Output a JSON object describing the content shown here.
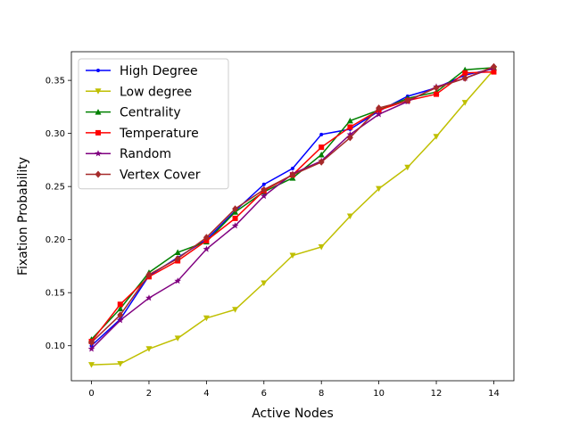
{
  "chart_data": {
    "type": "line",
    "title": "",
    "xlabel": "Active Nodes",
    "ylabel": "Fixation Probability",
    "xlim": [
      -0.7,
      14.7
    ],
    "ylim": [
      0.067,
      0.377
    ],
    "xticks": [
      0,
      2,
      4,
      6,
      8,
      10,
      12,
      14
    ],
    "yticks": [
      0.1,
      0.15,
      0.2,
      0.25,
      0.3,
      0.35
    ],
    "xtick_labels": [
      "0",
      "2",
      "4",
      "6",
      "8",
      "10",
      "12",
      "14"
    ],
    "ytick_labels": [
      "0.10",
      "0.15",
      "0.20",
      "0.25",
      "0.30",
      "0.35"
    ],
    "grid": false,
    "legend_position": "upper-left",
    "x": [
      0,
      1,
      2,
      3,
      4,
      5,
      6,
      7,
      8,
      9,
      10,
      11,
      12,
      13,
      14
    ],
    "series": [
      {
        "name": "High Degree",
        "color": "#0000ff",
        "marker": "point",
        "values": [
          0.1,
          0.125,
          0.166,
          0.183,
          0.2,
          0.227,
          0.252,
          0.267,
          0.299,
          0.304,
          0.321,
          0.335,
          0.343,
          0.355,
          0.361
        ]
      },
      {
        "name": "Low degree",
        "color": "#bfbf00",
        "marker": "triangle-down",
        "values": [
          0.082,
          0.083,
          0.097,
          0.107,
          0.126,
          0.134,
          0.159,
          0.185,
          0.193,
          0.222,
          0.248,
          0.268,
          0.297,
          0.329,
          0.36
        ]
      },
      {
        "name": "Centrality",
        "color": "#008000",
        "marker": "triangle-up",
        "values": [
          0.106,
          0.135,
          0.169,
          0.188,
          0.198,
          0.226,
          0.245,
          0.258,
          0.28,
          0.312,
          0.322,
          0.333,
          0.339,
          0.36,
          0.362
        ]
      },
      {
        "name": "Temperature",
        "color": "#ff0000",
        "marker": "square",
        "values": [
          0.104,
          0.139,
          0.165,
          0.18,
          0.199,
          0.22,
          0.246,
          0.261,
          0.287,
          0.306,
          0.322,
          0.331,
          0.337,
          0.357,
          0.358
        ]
      },
      {
        "name": "Random",
        "color": "#800080",
        "marker": "star",
        "values": [
          0.097,
          0.124,
          0.145,
          0.161,
          0.191,
          0.213,
          0.241,
          0.262,
          0.274,
          0.299,
          0.318,
          0.33,
          0.344,
          0.352,
          0.362
        ]
      },
      {
        "name": "Vertex Cover",
        "color": "#a52a2a",
        "marker": "diamond",
        "values": [
          0.103,
          0.129,
          0.167,
          0.182,
          0.202,
          0.229,
          0.247,
          0.261,
          0.273,
          0.296,
          0.324,
          0.331,
          0.343,
          0.352,
          0.363
        ]
      }
    ]
  }
}
